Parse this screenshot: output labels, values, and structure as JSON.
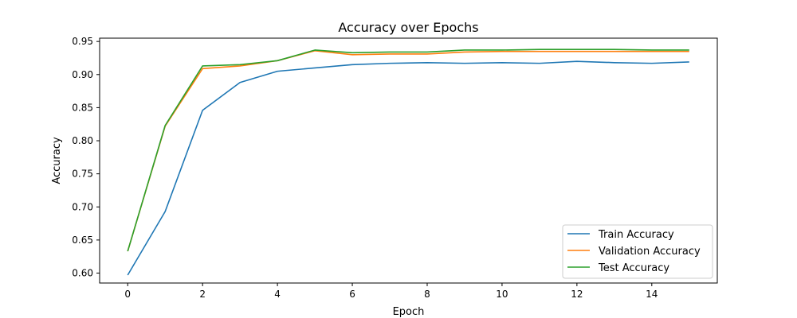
{
  "chart_data": {
    "type": "line",
    "title": "Accuracy over Epochs",
    "xlabel": "Epoch",
    "ylabel": "Accuracy",
    "x": [
      0,
      1,
      2,
      3,
      4,
      5,
      6,
      7,
      8,
      9,
      10,
      11,
      12,
      13,
      14,
      15
    ],
    "xlim": [
      -0.75,
      15.75
    ],
    "ylim": [
      0.585,
      0.955
    ],
    "xticks": [
      0,
      2,
      4,
      6,
      8,
      10,
      12,
      14
    ],
    "xtick_labels": [
      "0",
      "2",
      "4",
      "6",
      "8",
      "10",
      "12",
      "14"
    ],
    "yticks": [
      0.6,
      0.65,
      0.7,
      0.75,
      0.8,
      0.85,
      0.9,
      0.95
    ],
    "ytick_labels": [
      "0.60",
      "0.65",
      "0.70",
      "0.75",
      "0.80",
      "0.85",
      "0.90",
      "0.95"
    ],
    "grid": false,
    "legend_position": "bottom-right",
    "series": [
      {
        "name": "Train Accuracy",
        "color": "#1f77b4",
        "values": [
          0.597,
          0.693,
          0.846,
          0.888,
          0.905,
          0.91,
          0.915,
          0.917,
          0.918,
          0.917,
          0.918,
          0.917,
          0.92,
          0.918,
          0.917,
          0.919
        ]
      },
      {
        "name": "Validation Accuracy",
        "color": "#ff7f0e",
        "values": [
          0.633,
          0.822,
          0.909,
          0.913,
          0.921,
          0.936,
          0.93,
          0.931,
          0.931,
          0.934,
          0.935,
          0.935,
          0.935,
          0.935,
          0.935,
          0.935
        ]
      },
      {
        "name": "Test Accuracy",
        "color": "#2ca02c",
        "values": [
          0.633,
          0.823,
          0.913,
          0.915,
          0.921,
          0.937,
          0.933,
          0.934,
          0.934,
          0.937,
          0.937,
          0.938,
          0.938,
          0.938,
          0.937,
          0.937
        ]
      }
    ]
  }
}
